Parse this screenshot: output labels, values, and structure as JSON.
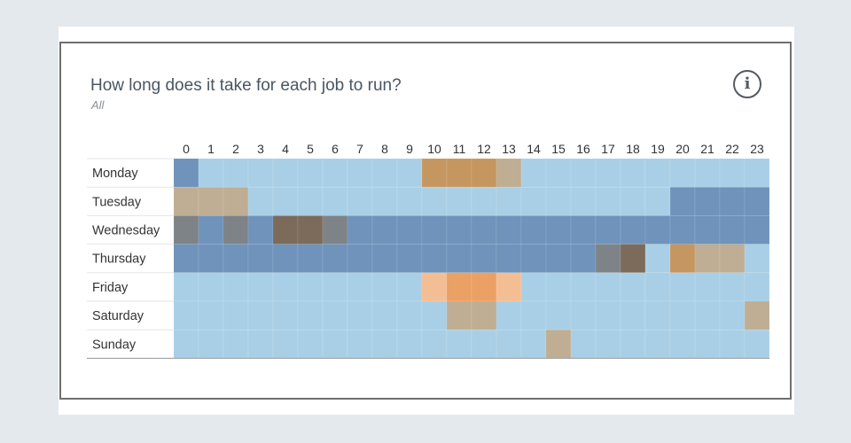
{
  "header": {
    "title": "How long does it take for each job to run?",
    "subtitle": "All",
    "info_icon": "info-icon",
    "info_glyph": "i"
  },
  "chart_data": {
    "type": "heatmap",
    "title": "How long does it take for each job to run?",
    "subtitle": "All",
    "x": [
      "0",
      "1",
      "2",
      "3",
      "4",
      "5",
      "6",
      "7",
      "8",
      "9",
      "10",
      "11",
      "12",
      "13",
      "14",
      "15",
      "16",
      "17",
      "18",
      "19",
      "20",
      "21",
      "22",
      "23"
    ],
    "y": [
      "Monday",
      "Tuesday",
      "Wednesday",
      "Thursday",
      "Friday",
      "Saturday",
      "Sunday"
    ],
    "legend": "none",
    "grid": true,
    "colors": {
      "L": "#a9cfe6",
      "B": "#6f93bb",
      "T": "#bfae93",
      "O": "#c59660",
      "G": "#7e8387",
      "D": "#7c6b5a",
      "P": "#f4be95",
      "Q": "#eba064"
    },
    "rows": [
      [
        "B",
        "L",
        "L",
        "L",
        "L",
        "L",
        "L",
        "L",
        "L",
        "L",
        "O",
        "O",
        "O",
        "T",
        "L",
        "L",
        "L",
        "L",
        "L",
        "L",
        "L",
        "L",
        "L",
        "L"
      ],
      [
        "T",
        "T",
        "T",
        "L",
        "L",
        "L",
        "L",
        "L",
        "L",
        "L",
        "L",
        "L",
        "L",
        "L",
        "L",
        "L",
        "L",
        "L",
        "L",
        "L",
        "B",
        "B",
        "B",
        "B"
      ],
      [
        "G",
        "B",
        "G",
        "B",
        "D",
        "D",
        "G",
        "B",
        "B",
        "B",
        "B",
        "B",
        "B",
        "B",
        "B",
        "B",
        "B",
        "B",
        "B",
        "B",
        "B",
        "B",
        "B",
        "B"
      ],
      [
        "B",
        "B",
        "B",
        "B",
        "B",
        "B",
        "B",
        "B",
        "B",
        "B",
        "B",
        "B",
        "B",
        "B",
        "B",
        "B",
        "B",
        "G",
        "D",
        "L",
        "O",
        "T",
        "T",
        "L"
      ],
      [
        "L",
        "L",
        "L",
        "L",
        "L",
        "L",
        "L",
        "L",
        "L",
        "L",
        "P",
        "Q",
        "Q",
        "P",
        "L",
        "L",
        "L",
        "L",
        "L",
        "L",
        "L",
        "L",
        "L",
        "L"
      ],
      [
        "L",
        "L",
        "L",
        "L",
        "L",
        "L",
        "L",
        "L",
        "L",
        "L",
        "L",
        "T",
        "T",
        "L",
        "L",
        "L",
        "L",
        "L",
        "L",
        "L",
        "L",
        "L",
        "L",
        "T"
      ],
      [
        "L",
        "L",
        "L",
        "L",
        "L",
        "L",
        "L",
        "L",
        "L",
        "L",
        "L",
        "L",
        "L",
        "L",
        "L",
        "T",
        "L",
        "L",
        "L",
        "L",
        "L",
        "L",
        "L",
        "L"
      ]
    ]
  }
}
